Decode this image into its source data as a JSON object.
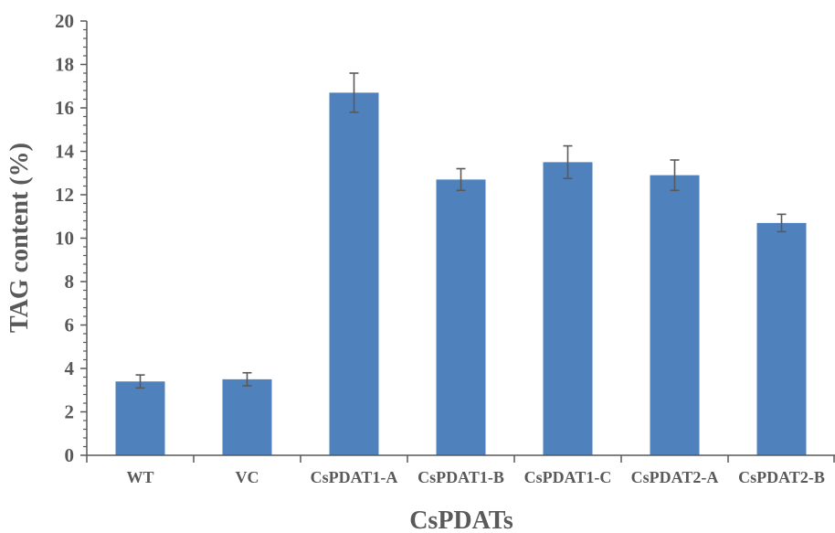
{
  "chart_data": {
    "type": "bar",
    "title": "",
    "xlabel": "CsPDATs",
    "ylabel": "TAG content (%)",
    "categories": [
      "WT",
      "VC",
      "CsPDAT1-A",
      "CsPDAT1-B",
      "CsPDAT1-C",
      "CsPDAT2-A",
      "CsPDAT2-B"
    ],
    "values": [
      3.4,
      3.5,
      16.7,
      12.7,
      13.5,
      12.9,
      10.7
    ],
    "errors": [
      0.3,
      0.3,
      0.9,
      0.5,
      0.75,
      0.7,
      0.4
    ],
    "ylim": [
      0,
      20
    ],
    "yticks": [
      "0",
      "2",
      "4",
      "6",
      "8",
      "10",
      "12",
      "14",
      "16",
      "18",
      "20"
    ],
    "grid": false,
    "legend": "none",
    "colors": {
      "bar": "#4f81bd",
      "axis": "#595959",
      "error_bar": "#595959"
    }
  }
}
